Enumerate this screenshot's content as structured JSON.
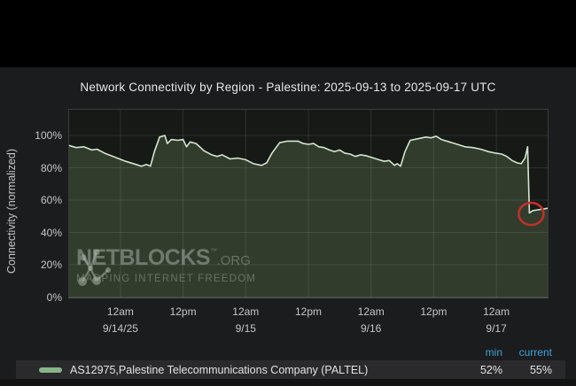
{
  "page": {
    "background": "#000000",
    "panel_background": "#1b1c1e",
    "plot_background": "#171916",
    "footer_color": "#131313"
  },
  "chart": {
    "title": "Network Connectivity by Region - Palestine: 2025-09-13 to 2025-09-17 UTC",
    "y_axis_label": "Connectivity (normalized)"
  },
  "watermark": {
    "brand": "NETBLOCKS",
    "tm": "™",
    "suffix": ".ORG",
    "tagline": "MAPPING INTERNET FREEDOM"
  },
  "legend": {
    "columns": [
      "min",
      "current"
    ],
    "header_color": "#41a0d8",
    "series": [
      {
        "label": "AS12975,Palestine Telecommunications Company (PALTEL)",
        "min": "52%",
        "current": "55%",
        "swatch_color": "#87b587"
      }
    ]
  },
  "chart_data": {
    "type": "area",
    "title": "Network Connectivity by Region - Palestine: 2025-09-13 to 2025-09-17 UTC",
    "xlabel": "",
    "ylabel": "Connectivity (normalized)",
    "ylim": [
      0,
      116.5
    ],
    "grid": true,
    "legend_position": "bottom",
    "yticks": [
      {
        "value": 0,
        "label": "0%"
      },
      {
        "value": 20,
        "label": "20%"
      },
      {
        "value": 40,
        "label": "40%"
      },
      {
        "value": 60,
        "label": "60%"
      },
      {
        "value": 80,
        "label": "80%"
      },
      {
        "value": 100,
        "label": "100%"
      }
    ],
    "x_domain": [
      "09-13 14:00",
      "09-17 10:00"
    ],
    "xticks": [
      {
        "t": "09-14 00:00",
        "label": "12am",
        "date": "9/14/25"
      },
      {
        "t": "09-14 12:00",
        "label": "12pm",
        "date": ""
      },
      {
        "t": "09-15 00:00",
        "label": "12am",
        "date": "9/15"
      },
      {
        "t": "09-15 12:00",
        "label": "12pm",
        "date": ""
      },
      {
        "t": "09-16 00:00",
        "label": "12am",
        "date": "9/16"
      },
      {
        "t": "09-16 12:00",
        "label": "12pm",
        "date": ""
      },
      {
        "t": "09-17 00:00",
        "label": "12am",
        "date": "9/17"
      }
    ],
    "series": [
      {
        "name": "AS12975,Palestine Telecommunications Company (PALTEL)",
        "line_color": "#d3e5cf",
        "fill_color": "#313c2d",
        "min": "52%",
        "current": "55%",
        "points": [
          [
            "09-13 14:00",
            94
          ],
          [
            "09-13 15:30",
            92.5
          ],
          [
            "09-13 17:00",
            93
          ],
          [
            "09-13 18:30",
            91
          ],
          [
            "09-13 19:30",
            91.5
          ],
          [
            "09-13 21:00",
            89
          ],
          [
            "09-13 23:00",
            86.5
          ],
          [
            "09-14 01:00",
            84
          ],
          [
            "09-14 03:00",
            82
          ],
          [
            "09-14 04:00",
            81
          ],
          [
            "09-14 05:00",
            82
          ],
          [
            "09-14 05:45",
            81
          ],
          [
            "09-14 06:30",
            90
          ],
          [
            "09-14 07:30",
            99
          ],
          [
            "09-14 08:30",
            100
          ],
          [
            "09-14 09:00",
            95
          ],
          [
            "09-14 09:45",
            97.5
          ],
          [
            "09-14 11:00",
            97
          ],
          [
            "09-14 12:00",
            97.5
          ],
          [
            "09-14 12:40",
            93
          ],
          [
            "09-14 13:20",
            96
          ],
          [
            "09-14 14:30",
            95
          ],
          [
            "09-14 16:00",
            90.5
          ],
          [
            "09-14 17:30",
            88
          ],
          [
            "09-14 18:30",
            87
          ],
          [
            "09-14 19:30",
            88
          ],
          [
            "09-14 21:00",
            85.5
          ],
          [
            "09-14 22:30",
            86
          ],
          [
            "09-15 00:00",
            85
          ],
          [
            "09-15 01:30",
            82.5
          ],
          [
            "09-15 03:00",
            81.5
          ],
          [
            "09-15 04:00",
            83
          ],
          [
            "09-15 05:00",
            89
          ],
          [
            "09-15 06:30",
            95.5
          ],
          [
            "09-15 08:00",
            96.5
          ],
          [
            "09-15 10:00",
            96.5
          ],
          [
            "09-15 11:00",
            95
          ],
          [
            "09-15 12:00",
            94.5
          ],
          [
            "09-15 13:00",
            95
          ],
          [
            "09-15 14:00",
            93
          ],
          [
            "09-15 15:00",
            92.5
          ],
          [
            "09-15 16:00",
            91
          ],
          [
            "09-15 17:00",
            90
          ],
          [
            "09-15 18:00",
            91
          ],
          [
            "09-15 19:00",
            89
          ],
          [
            "09-15 20:00",
            88.5
          ],
          [
            "09-15 21:00",
            87
          ],
          [
            "09-15 22:00",
            88
          ],
          [
            "09-15 23:00",
            87.5
          ],
          [
            "09-16 00:00",
            86.5
          ],
          [
            "09-16 01:30",
            85
          ],
          [
            "09-16 02:30",
            84
          ],
          [
            "09-16 03:30",
            84.5
          ],
          [
            "09-16 04:30",
            81.5
          ],
          [
            "09-16 05:00",
            82.5
          ],
          [
            "09-16 05:40",
            81
          ],
          [
            "09-16 06:30",
            90
          ],
          [
            "09-16 07:30",
            97
          ],
          [
            "09-16 09:00",
            98
          ],
          [
            "09-16 10:30",
            99
          ],
          [
            "09-16 11:30",
            98.5
          ],
          [
            "09-16 12:30",
            99.5
          ],
          [
            "09-16 13:30",
            97.5
          ],
          [
            "09-16 15:00",
            96
          ],
          [
            "09-16 16:30",
            94.5
          ],
          [
            "09-16 18:00",
            93
          ],
          [
            "09-16 19:30",
            92.5
          ],
          [
            "09-16 21:00",
            91.5
          ],
          [
            "09-16 22:30",
            90
          ],
          [
            "09-17 00:00",
            89
          ],
          [
            "09-17 01:00",
            88.5
          ],
          [
            "09-17 02:00",
            87
          ],
          [
            "09-17 03:00",
            84.5
          ],
          [
            "09-17 04:00",
            83
          ],
          [
            "09-17 04:45",
            82.5
          ],
          [
            "09-17 05:30",
            86
          ],
          [
            "09-17 06:00",
            93
          ],
          [
            "09-17 06:20",
            52
          ],
          [
            "09-17 07:00",
            53.5
          ],
          [
            "09-17 08:00",
            54
          ],
          [
            "09-17 10:00",
            55
          ]
        ]
      }
    ],
    "annotation": {
      "type": "circle",
      "t": "09-17 06:20",
      "value": 52,
      "color": "#c13028"
    }
  }
}
